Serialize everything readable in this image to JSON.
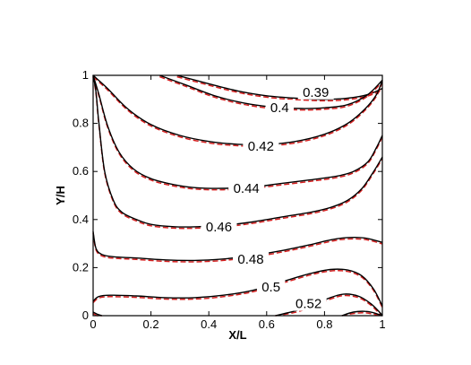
{
  "chart_data": {
    "type": "line",
    "title": "",
    "xlabel": "X/L",
    "ylabel": "Y/H",
    "xlim": [
      0,
      1
    ],
    "ylim": [
      0,
      1
    ],
    "xticks": [
      "0",
      "0.2",
      "0.4",
      "0.6",
      "0.8",
      "1"
    ],
    "yticks": [
      "0",
      "0.2",
      "0.4",
      "0.6",
      "0.8",
      "1"
    ],
    "grid": false,
    "legend": "none",
    "colors": {
      "solid": "#000000",
      "dashed": "#d62020"
    },
    "series": [
      {
        "label": "0.39",
        "label_at": [
          0.77,
          0.93
        ],
        "points": [
          [
            0.29,
            1.0
          ],
          [
            0.4,
            0.965
          ],
          [
            0.5,
            0.935
          ],
          [
            0.6,
            0.915
          ],
          [
            0.7,
            0.905
          ],
          [
            0.8,
            0.9
          ],
          [
            0.88,
            0.905
          ],
          [
            0.95,
            0.92
          ],
          [
            1.0,
            0.945
          ]
        ]
      },
      {
        "label": "0.4",
        "label_at": [
          0.645,
          0.865
        ],
        "points": [
          [
            0.23,
            1.0
          ],
          [
            0.32,
            0.96
          ],
          [
            0.42,
            0.915
          ],
          [
            0.52,
            0.885
          ],
          [
            0.62,
            0.868
          ],
          [
            0.72,
            0.862
          ],
          [
            0.8,
            0.865
          ],
          [
            0.88,
            0.878
          ],
          [
            0.95,
            0.92
          ],
          [
            1.0,
            0.98
          ]
        ]
      },
      {
        "label": "0.42",
        "label_at": [
          0.58,
          0.705
        ],
        "points": [
          [
            0.0,
            1.0
          ],
          [
            0.05,
            0.945
          ],
          [
            0.12,
            0.86
          ],
          [
            0.2,
            0.795
          ],
          [
            0.3,
            0.75
          ],
          [
            0.4,
            0.725
          ],
          [
            0.5,
            0.713
          ],
          [
            0.6,
            0.712
          ],
          [
            0.7,
            0.725
          ],
          [
            0.8,
            0.755
          ],
          [
            0.88,
            0.8
          ],
          [
            0.94,
            0.86
          ],
          [
            0.98,
            0.92
          ],
          [
            1.0,
            0.98
          ]
        ]
      },
      {
        "label": "0.44",
        "label_at": [
          0.53,
          0.53
        ],
        "points": [
          [
            0.0,
            1.0
          ],
          [
            0.02,
            0.92
          ],
          [
            0.05,
            0.79
          ],
          [
            0.09,
            0.68
          ],
          [
            0.14,
            0.61
          ],
          [
            0.2,
            0.57
          ],
          [
            0.28,
            0.545
          ],
          [
            0.36,
            0.532
          ],
          [
            0.45,
            0.53
          ],
          [
            0.55,
            0.535
          ],
          [
            0.65,
            0.55
          ],
          [
            0.75,
            0.565
          ],
          [
            0.84,
            0.58
          ],
          [
            0.9,
            0.6
          ],
          [
            0.95,
            0.64
          ],
          [
            0.98,
            0.7
          ],
          [
            1.0,
            0.75
          ]
        ]
      },
      {
        "label": "0.46",
        "label_at": [
          0.435,
          0.37
        ],
        "points": [
          [
            0.0,
            1.0
          ],
          [
            0.01,
            0.93
          ],
          [
            0.02,
            0.8
          ],
          [
            0.04,
            0.6
          ],
          [
            0.07,
            0.48
          ],
          [
            0.1,
            0.43
          ],
          [
            0.15,
            0.4
          ],
          [
            0.2,
            0.38
          ],
          [
            0.28,
            0.37
          ],
          [
            0.36,
            0.37
          ],
          [
            0.45,
            0.375
          ],
          [
            0.55,
            0.39
          ],
          [
            0.65,
            0.41
          ],
          [
            0.75,
            0.43
          ],
          [
            0.82,
            0.45
          ],
          [
            0.88,
            0.48
          ],
          [
            0.93,
            0.53
          ],
          [
            0.97,
            0.6
          ],
          [
            1.0,
            0.66
          ]
        ]
      },
      {
        "label": "0.48",
        "label_at": [
          0.545,
          0.235
        ],
        "points": [
          [
            0.0,
            0.35
          ],
          [
            0.01,
            0.28
          ],
          [
            0.03,
            0.255
          ],
          [
            0.07,
            0.245
          ],
          [
            0.15,
            0.24
          ],
          [
            0.25,
            0.232
          ],
          [
            0.35,
            0.23
          ],
          [
            0.45,
            0.236
          ],
          [
            0.55,
            0.25
          ],
          [
            0.65,
            0.27
          ],
          [
            0.75,
            0.295
          ],
          [
            0.82,
            0.315
          ],
          [
            0.88,
            0.325
          ],
          [
            0.94,
            0.323
          ],
          [
            1.0,
            0.305
          ]
        ]
      },
      {
        "label": "0.5",
        "label_at": [
          0.615,
          0.12
        ],
        "points": [
          [
            0.0,
            0.06
          ],
          [
            0.02,
            0.08
          ],
          [
            0.06,
            0.085
          ],
          [
            0.15,
            0.082
          ],
          [
            0.25,
            0.075
          ],
          [
            0.35,
            0.075
          ],
          [
            0.45,
            0.085
          ],
          [
            0.55,
            0.105
          ],
          [
            0.65,
            0.14
          ],
          [
            0.75,
            0.175
          ],
          [
            0.82,
            0.192
          ],
          [
            0.88,
            0.19
          ],
          [
            0.93,
            0.165
          ],
          [
            0.97,
            0.11
          ],
          [
            1.0,
            0.04
          ]
        ]
      },
      {
        "label": "0.52",
        "label_at": [
          0.745,
          0.05
        ],
        "points": [
          [
            0.63,
            0.0
          ],
          [
            0.7,
            0.02
          ],
          [
            0.76,
            0.045
          ],
          [
            0.82,
            0.075
          ],
          [
            0.87,
            0.09
          ],
          [
            0.92,
            0.08
          ],
          [
            0.96,
            0.05
          ],
          [
            0.99,
            0.015
          ],
          [
            1.0,
            0.0
          ]
        ]
      },
      {
        "label": "",
        "points": [
          [
            0.86,
            0.0
          ],
          [
            0.9,
            0.015
          ],
          [
            0.94,
            0.018
          ],
          [
            0.97,
            0.012
          ],
          [
            1.0,
            0.0
          ]
        ]
      },
      {
        "label": "",
        "points": [
          [
            0.0,
            0.015
          ],
          [
            0.015,
            0.006
          ],
          [
            0.03,
            0.0
          ]
        ]
      }
    ]
  }
}
